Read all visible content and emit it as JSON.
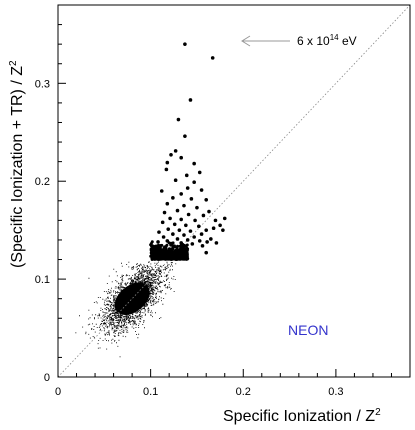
{
  "chart_data": {
    "type": "scatter",
    "xlabel_main": "Specific Ionization / Z",
    "xlabel_sup": "2",
    "ylabel_main": "(Specific Ionization + TR) / Z",
    "ylabel_sup": "2",
    "xlim": [
      0,
      0.38
    ],
    "ylim": [
      0,
      0.38
    ],
    "x_ticks": [
      "0",
      "0.1",
      "0.2",
      "0.3"
    ],
    "y_ticks": [
      "0",
      "0.1",
      "0.2",
      "0.3"
    ],
    "annotation": {
      "base": "6 x 10",
      "exp": "14",
      "unit": " eV"
    },
    "panel_label": "NEON",
    "panel_label_color": "#3333cc",
    "reference_line": {
      "from": [
        0,
        0
      ],
      "to": [
        0.38,
        0.38
      ],
      "style": "dotted"
    },
    "background_cloud": {
      "center_x": 0.08,
      "center_y": 0.08,
      "note_count": 0
    },
    "points": [
      [
        0.137,
        0.34
      ],
      [
        0.167,
        0.326
      ],
      [
        0.143,
        0.283
      ],
      [
        0.13,
        0.263
      ],
      [
        0.137,
        0.246
      ],
      [
        0.122,
        0.227
      ],
      [
        0.127,
        0.231
      ],
      [
        0.133,
        0.224
      ],
      [
        0.118,
        0.219
      ],
      [
        0.147,
        0.218
      ],
      [
        0.153,
        0.209
      ],
      [
        0.117,
        0.212
      ],
      [
        0.139,
        0.206
      ],
      [
        0.127,
        0.201
      ],
      [
        0.147,
        0.199
      ],
      [
        0.14,
        0.193
      ],
      [
        0.155,
        0.191
      ],
      [
        0.112,
        0.19
      ],
      [
        0.133,
        0.187
      ],
      [
        0.124,
        0.183
      ],
      [
        0.144,
        0.182
      ],
      [
        0.16,
        0.181
      ],
      [
        0.118,
        0.177
      ],
      [
        0.136,
        0.175
      ],
      [
        0.15,
        0.173
      ],
      [
        0.129,
        0.17
      ],
      [
        0.163,
        0.169
      ],
      [
        0.115,
        0.168
      ],
      [
        0.141,
        0.166
      ],
      [
        0.157,
        0.165
      ],
      [
        0.121,
        0.162
      ],
      [
        0.133,
        0.161
      ],
      [
        0.148,
        0.16
      ],
      [
        0.17,
        0.16
      ],
      [
        0.18,
        0.162
      ],
      [
        0.175,
        0.155
      ],
      [
        0.168,
        0.152
      ],
      [
        0.178,
        0.15
      ],
      [
        0.113,
        0.158
      ],
      [
        0.126,
        0.156
      ],
      [
        0.138,
        0.155
      ],
      [
        0.152,
        0.154
      ],
      [
        0.16,
        0.15
      ],
      [
        0.119,
        0.151
      ],
      [
        0.131,
        0.15
      ],
      [
        0.143,
        0.149
      ],
      [
        0.109,
        0.148
      ],
      [
        0.155,
        0.146
      ],
      [
        0.124,
        0.146
      ],
      [
        0.136,
        0.145
      ],
      [
        0.147,
        0.143
      ],
      [
        0.114,
        0.143
      ],
      [
        0.129,
        0.141
      ],
      [
        0.14,
        0.14
      ],
      [
        0.153,
        0.139
      ],
      [
        0.118,
        0.139
      ],
      [
        0.161,
        0.138
      ],
      [
        0.108,
        0.138
      ],
      [
        0.133,
        0.137
      ],
      [
        0.145,
        0.136
      ],
      [
        0.122,
        0.135
      ],
      [
        0.156,
        0.134
      ],
      [
        0.165,
        0.141
      ],
      [
        0.16,
        0.127
      ],
      [
        0.171,
        0.137
      ]
    ]
  }
}
